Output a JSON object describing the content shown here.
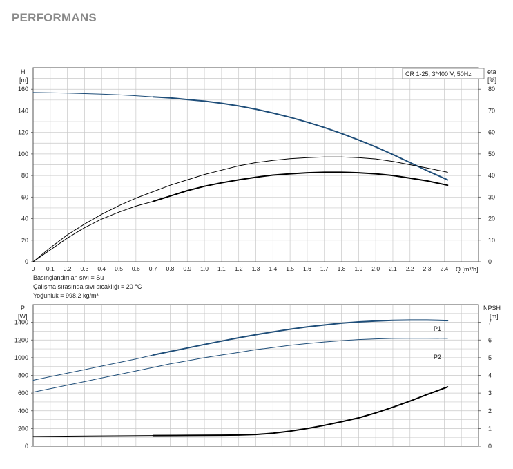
{
  "page": {
    "heading": "PERFORMANS"
  },
  "top_chart": {
    "legend": "CR 1-25, 3*400 V, 50Hz",
    "left_axis_label": "H",
    "left_axis_unit": "[m]",
    "right_axis_label": "eta",
    "right_axis_unit": "[%]",
    "x_axis_label": "Q [m³/h]"
  },
  "notes": {
    "line1": "Basınçlandırılan sıvı = Su",
    "line2": "Çalışma sırasında sıvı sıcaklığı = 20 °C",
    "line3": "Yoğunluk = 998.2 kg/m³"
  },
  "bottom_chart": {
    "left_axis_label": "P",
    "left_axis_unit": "[W]",
    "right_axis_label": "NPSH",
    "right_axis_unit": "[m]",
    "p1_label": "P1",
    "p2_label": "P2"
  },
  "colors": {
    "blue": "#1f4e79",
    "black": "#000000",
    "grid": "#c8c8c8"
  },
  "chart_data": [
    {
      "type": "line",
      "title": "",
      "xlabel": "Q [m³/h]",
      "ylabel": "H [m]",
      "y2label": "eta [%]",
      "xlim": [
        0,
        2.6
      ],
      "ylim": [
        0,
        180
      ],
      "y2lim": [
        0,
        90
      ],
      "x_ticks": [
        "0",
        "0.1",
        "0.2",
        "0.3",
        "0.4",
        "0.5",
        "0.6",
        "0.7",
        "0.8",
        "0.9",
        "1.0",
        "1.1",
        "1.2",
        "1.3",
        "1.4",
        "1.5",
        "1.6",
        "1.7",
        "1.8",
        "1.9",
        "2.0",
        "2.1",
        "2.2",
        "2.3",
        "2.4"
      ],
      "y_ticks": [
        "0",
        "20",
        "40",
        "60",
        "80",
        "100",
        "120",
        "140",
        "160"
      ],
      "y2_ticks": [
        "0",
        "10",
        "20",
        "30",
        "40",
        "50",
        "60",
        "70",
        "80"
      ],
      "grid": true,
      "series": [
        {
          "key": "H",
          "axis": "left",
          "color": "#1f4e79",
          "width": 2,
          "x": [
            0.7,
            0.8,
            0.9,
            1.0,
            1.1,
            1.2,
            1.3,
            1.4,
            1.5,
            1.6,
            1.7,
            1.8,
            1.9,
            2.0,
            2.1,
            2.2,
            2.3,
            2.42
          ],
          "y": [
            153,
            152,
            150.5,
            149,
            147,
            144.5,
            141.5,
            138,
            134,
            129.5,
            124.5,
            119,
            113,
            106.5,
            99.5,
            92,
            84.5,
            76
          ]
        },
        {
          "key": "H-extended",
          "axis": "left",
          "color": "#1f4e79",
          "width": 1,
          "x": [
            0,
            0.1,
            0.2,
            0.3,
            0.4,
            0.5,
            0.6,
            0.7
          ],
          "y": [
            157,
            156.8,
            156.5,
            156,
            155.5,
            154.8,
            154,
            153
          ]
        },
        {
          "key": "eta-upper",
          "axis": "right",
          "color": "#000000",
          "width": 1,
          "x": [
            0,
            0.1,
            0.2,
            0.3,
            0.4,
            0.5,
            0.6,
            0.7,
            0.8,
            0.9,
            1.0,
            1.1,
            1.2,
            1.3,
            1.4,
            1.5,
            1.6,
            1.7,
            1.8,
            1.9,
            2.0,
            2.1,
            2.2,
            2.3,
            2.42
          ],
          "y": [
            0,
            6.5,
            12.5,
            17.5,
            22,
            26,
            29.5,
            32.5,
            35.5,
            38,
            40.5,
            42.5,
            44.5,
            46,
            47,
            47.8,
            48.3,
            48.6,
            48.6,
            48.3,
            47.7,
            46.5,
            45,
            43.5,
            41.5
          ]
        },
        {
          "key": "eta-lower-thin",
          "axis": "right",
          "color": "#000000",
          "width": 1,
          "x": [
            0,
            0.1,
            0.2,
            0.3,
            0.4,
            0.5,
            0.6,
            0.7
          ],
          "y": [
            0,
            5.5,
            11,
            15.8,
            19.8,
            23,
            25.8,
            28
          ]
        },
        {
          "key": "eta-lower",
          "axis": "right",
          "color": "#000000",
          "width": 2,
          "x": [
            0.7,
            0.8,
            0.9,
            1.0,
            1.1,
            1.2,
            1.3,
            1.4,
            1.5,
            1.6,
            1.7,
            1.8,
            1.9,
            2.0,
            2.1,
            2.2,
            2.3,
            2.42
          ],
          "y": [
            28,
            30.5,
            33,
            35,
            36.6,
            38,
            39.2,
            40.2,
            40.8,
            41.3,
            41.5,
            41.5,
            41.3,
            40.8,
            40,
            38.8,
            37.5,
            35.5
          ]
        }
      ]
    },
    {
      "type": "line",
      "title": "",
      "xlabel": "",
      "ylabel": "P [W]",
      "y2label": "NPSH [m]",
      "xlim": [
        0,
        2.6
      ],
      "ylim": [
        0,
        1600
      ],
      "y2lim": [
        0,
        8
      ],
      "y_ticks": [
        "0",
        "200",
        "400",
        "600",
        "800",
        "1000",
        "1200",
        "1400"
      ],
      "y2_ticks": [
        "0",
        "1",
        "2",
        "3",
        "4",
        "5",
        "6",
        "7"
      ],
      "grid": true,
      "series": [
        {
          "key": "P1-thin",
          "axis": "left",
          "color": "#1f4e79",
          "width": 1,
          "x": [
            0,
            0.1,
            0.2,
            0.3,
            0.4,
            0.5,
            0.6,
            0.7
          ],
          "y": [
            745,
            785,
            825,
            865,
            905,
            945,
            985,
            1030
          ]
        },
        {
          "key": "P1",
          "axis": "left",
          "color": "#1f4e79",
          "width": 2,
          "name": "P1",
          "x": [
            0.7,
            0.8,
            0.9,
            1.0,
            1.1,
            1.2,
            1.3,
            1.4,
            1.5,
            1.6,
            1.7,
            1.8,
            1.9,
            2.0,
            2.1,
            2.2,
            2.3,
            2.42
          ],
          "y": [
            1030,
            1070,
            1110,
            1150,
            1188,
            1225,
            1260,
            1292,
            1322,
            1348,
            1370,
            1390,
            1405,
            1415,
            1422,
            1425,
            1425,
            1420
          ]
        },
        {
          "key": "P2",
          "axis": "left",
          "color": "#1f4e79",
          "width": 1,
          "name": "P2",
          "x": [
            0,
            0.1,
            0.2,
            0.3,
            0.4,
            0.5,
            0.6,
            0.7,
            0.8,
            0.9,
            1.0,
            1.1,
            1.2,
            1.3,
            1.4,
            1.5,
            1.6,
            1.7,
            1.8,
            1.9,
            2.0,
            2.1,
            2.2,
            2.3,
            2.42
          ],
          "y": [
            610,
            650,
            690,
            730,
            770,
            810,
            850,
            890,
            930,
            965,
            1000,
            1030,
            1060,
            1090,
            1115,
            1140,
            1160,
            1178,
            1192,
            1205,
            1213,
            1218,
            1220,
            1220,
            1218
          ]
        },
        {
          "key": "NPSH-thin",
          "axis": "right",
          "color": "#000000",
          "width": 1,
          "x": [
            0,
            0.7
          ],
          "y": [
            0.55,
            0.6
          ]
        },
        {
          "key": "NPSH",
          "axis": "right",
          "color": "#000000",
          "width": 2,
          "x": [
            0.7,
            0.9,
            1.1,
            1.2,
            1.3,
            1.4,
            1.5,
            1.6,
            1.7,
            1.8,
            1.9,
            2.0,
            2.1,
            2.2,
            2.3,
            2.42
          ],
          "y": [
            0.6,
            0.61,
            0.62,
            0.63,
            0.66,
            0.73,
            0.85,
            1.0,
            1.18,
            1.38,
            1.6,
            1.88,
            2.2,
            2.55,
            2.92,
            3.35
          ]
        }
      ]
    }
  ]
}
